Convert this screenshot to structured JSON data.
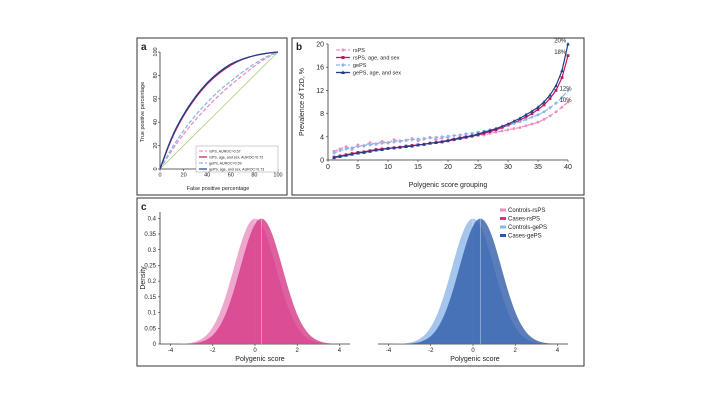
{
  "panel_labels": {
    "a": "a",
    "b": "b",
    "c": "c"
  },
  "chart_data": [
    {
      "panel": "a",
      "type": "line",
      "xlabel": "False positive percentage",
      "ylabel": "True positive percentage",
      "xlim": [
        0,
        100
      ],
      "ylim": [
        0,
        100
      ],
      "xticks": [
        "0",
        "20",
        "40",
        "60",
        "80",
        "100"
      ],
      "yticks": [
        "0",
        "20",
        "40",
        "60",
        "80",
        "100"
      ],
      "legend_position": "bottom-right",
      "series": [
        {
          "name": "rsPS, AUROC=0.57",
          "color": "#e98fc0",
          "dash": "4,2",
          "x": [
            0,
            10,
            20,
            30,
            40,
            50,
            60,
            70,
            80,
            90,
            100
          ],
          "y": [
            0,
            16,
            30,
            42,
            53,
            63,
            72,
            80,
            88,
            95,
            100
          ]
        },
        {
          "name": "rsPS, age, and sex, AUROC=0.72",
          "color": "#c2185b",
          "dash": "",
          "x": [
            0,
            10,
            20,
            30,
            40,
            50,
            60,
            70,
            80,
            90,
            100
          ],
          "y": [
            0,
            27,
            46,
            61,
            73,
            82,
            89,
            94,
            97,
            99,
            100
          ]
        },
        {
          "name": "gePS, AUROC=0.59",
          "color": "#8ab6e8",
          "dash": "4,2",
          "x": [
            0,
            10,
            20,
            30,
            40,
            50,
            60,
            70,
            80,
            90,
            100
          ],
          "y": [
            0,
            18,
            33,
            46,
            57,
            67,
            75,
            83,
            90,
            96,
            100
          ]
        },
        {
          "name": "gePS, age, and sex, AUROC=0.73",
          "color": "#1f3f8a",
          "dash": "",
          "x": [
            0,
            10,
            20,
            30,
            40,
            50,
            60,
            70,
            80,
            90,
            100
          ],
          "y": [
            0,
            28,
            47,
            62,
            74,
            83,
            90,
            94,
            97,
            99,
            100
          ]
        }
      ]
    },
    {
      "panel": "b",
      "type": "line",
      "xlabel": "Polygenic score grouping",
      "ylabel": "Prevalence of T2D, %",
      "xlim": [
        0,
        40
      ],
      "ylim": [
        0,
        20
      ],
      "xticks": [
        "0",
        "5",
        "10",
        "15",
        "20",
        "25",
        "30",
        "35",
        "40"
      ],
      "yticks": [
        "0",
        "4",
        "8",
        "12",
        "16",
        "20"
      ],
      "legend_position": "top-left",
      "annotations": [
        {
          "text": "20%",
          "x": 38.7,
          "y": 20.3,
          "color": "#1f3f8a"
        },
        {
          "text": "18%",
          "x": 38.7,
          "y": 18.3,
          "color": "#c2185b"
        },
        {
          "text": "12%",
          "x": 39.6,
          "y": 12.0,
          "color": "#8ab6e8"
        },
        {
          "text": "10%",
          "x": 39.6,
          "y": 10.0,
          "color": "#e98fc0"
        }
      ],
      "series": [
        {
          "name": "rsPS",
          "color": "#e98fc0",
          "dash": "4,2",
          "marker": "circle",
          "x": [
            1,
            2,
            3,
            4,
            5,
            6,
            7,
            8,
            9,
            10,
            11,
            12,
            13,
            14,
            15,
            16,
            17,
            18,
            19,
            20,
            21,
            22,
            23,
            24,
            25,
            26,
            27,
            28,
            29,
            30,
            31,
            32,
            33,
            34,
            35,
            36,
            37,
            38,
            39,
            40
          ],
          "y": [
            1.5,
            1.9,
            2.3,
            1.8,
            2.6,
            2.4,
            3.0,
            2.7,
            3.2,
            2.9,
            3.5,
            3.2,
            3.4,
            3.7,
            3.3,
            3.6,
            3.9,
            3.5,
            3.8,
            3.9,
            3.6,
            4.0,
            4.1,
            4.2,
            4.4,
            4.3,
            4.6,
            4.8,
            5.0,
            5.2,
            5.4,
            5.6,
            5.9,
            6.2,
            6.5,
            7.0,
            7.6,
            8.3,
            9.1,
            10.0
          ]
        },
        {
          "name": "rsPS, age, and sex",
          "color": "#c2185b",
          "dash": "",
          "marker": "square",
          "x": [
            1,
            2,
            3,
            4,
            5,
            6,
            7,
            8,
            9,
            10,
            11,
            12,
            13,
            14,
            15,
            16,
            17,
            18,
            19,
            20,
            21,
            22,
            23,
            24,
            25,
            26,
            27,
            28,
            29,
            30,
            31,
            32,
            33,
            34,
            35,
            36,
            37,
            38,
            39,
            40
          ],
          "y": [
            0.5,
            0.7,
            0.9,
            1.1,
            1.3,
            1.4,
            1.6,
            1.8,
            1.9,
            2.0,
            2.1,
            2.2,
            2.4,
            2.5,
            2.6,
            2.7,
            2.9,
            3.0,
            3.1,
            3.3,
            3.5,
            3.7,
            3.9,
            4.1,
            4.3,
            4.6,
            4.9,
            5.2,
            5.6,
            6.0,
            6.4,
            6.9,
            7.4,
            8.0,
            8.7,
            9.5,
            10.6,
            12.0,
            14.2,
            18.0
          ]
        },
        {
          "name": "gePS",
          "color": "#8ab6e8",
          "dash": "4,2",
          "marker": "diamond",
          "x": [
            1,
            2,
            3,
            4,
            5,
            6,
            7,
            8,
            9,
            10,
            11,
            12,
            13,
            14,
            15,
            16,
            17,
            18,
            19,
            20,
            21,
            22,
            23,
            24,
            25,
            26,
            27,
            28,
            29,
            30,
            31,
            32,
            33,
            34,
            35,
            36,
            37,
            38,
            39,
            40
          ],
          "y": [
            1.2,
            1.6,
            1.9,
            2.1,
            2.3,
            2.5,
            2.6,
            2.8,
            2.9,
            3.0,
            3.1,
            3.3,
            3.4,
            3.5,
            3.6,
            3.7,
            3.8,
            3.9,
            4.0,
            4.1,
            4.2,
            4.3,
            4.5,
            4.6,
            4.8,
            5.0,
            5.2,
            5.4,
            5.7,
            6.0,
            6.3,
            6.6,
            7.0,
            7.4,
            7.8,
            8.3,
            9.0,
            9.8,
            10.8,
            12.0
          ]
        },
        {
          "name": "gePS, age, and sex",
          "color": "#1f3f8a",
          "dash": "",
          "marker": "triangle",
          "x": [
            1,
            2,
            3,
            4,
            5,
            6,
            7,
            8,
            9,
            10,
            11,
            12,
            13,
            14,
            15,
            16,
            17,
            18,
            19,
            20,
            21,
            22,
            23,
            24,
            25,
            26,
            27,
            28,
            29,
            30,
            31,
            32,
            33,
            34,
            35,
            36,
            37,
            38,
            39,
            40
          ],
          "y": [
            0.4,
            0.6,
            0.8,
            1.0,
            1.2,
            1.3,
            1.5,
            1.7,
            1.8,
            2.0,
            2.1,
            2.2,
            2.3,
            2.4,
            2.6,
            2.7,
            2.9,
            3.0,
            3.2,
            3.4,
            3.6,
            3.8,
            4.0,
            4.2,
            4.5,
            4.8,
            5.1,
            5.4,
            5.8,
            6.2,
            6.7,
            7.2,
            7.8,
            8.4,
            9.1,
            10.0,
            11.2,
            12.8,
            15.4,
            20.0
          ]
        }
      ]
    },
    {
      "panel": "c",
      "type": "area",
      "xlabel": "Polygenic score",
      "ylabel": "Density",
      "xlim": [
        -4.5,
        4.5
      ],
      "ylim": [
        0,
        0.42
      ],
      "xticks": [
        "-4",
        "-2",
        "0",
        "2",
        "4"
      ],
      "yticks": [
        "0",
        "0.05",
        "0.1",
        "0.15",
        "0.2",
        "0.25",
        "0.3",
        "0.35",
        "0.4"
      ],
      "series": [
        {
          "name": "Controls-rsPS",
          "color": "#e98fc0",
          "mean": 0.0,
          "sd": 1.0
        },
        {
          "name": "Cases-rsPS",
          "color": "#d63384",
          "mean": 0.3,
          "sd": 1.0
        }
      ]
    },
    {
      "panel": "c2",
      "type": "area",
      "xlabel": "Polygenic score",
      "ylabel": "",
      "xlim": [
        -4.5,
        4.5
      ],
      "ylim": [
        0,
        0.42
      ],
      "xticks": [
        "-4",
        "-2",
        "0",
        "2",
        "4"
      ],
      "yticks": [],
      "legend_position": "top-right",
      "legend_series": [
        {
          "name": "Controls-rsPS",
          "color": "#e98fc0"
        },
        {
          "name": "Cases-rsPS",
          "color": "#d63384"
        },
        {
          "name": "Controls-gePS",
          "color": "#8ab6e8"
        },
        {
          "name": "Cases-gePS",
          "color": "#2d5aa8"
        }
      ],
      "series": [
        {
          "name": "Controls-gePS",
          "color": "#8ab6e8",
          "mean": 0.0,
          "sd": 1.0
        },
        {
          "name": "Cases-gePS",
          "color": "#2d5aa8",
          "mean": 0.35,
          "sd": 1.0
        }
      ]
    }
  ]
}
